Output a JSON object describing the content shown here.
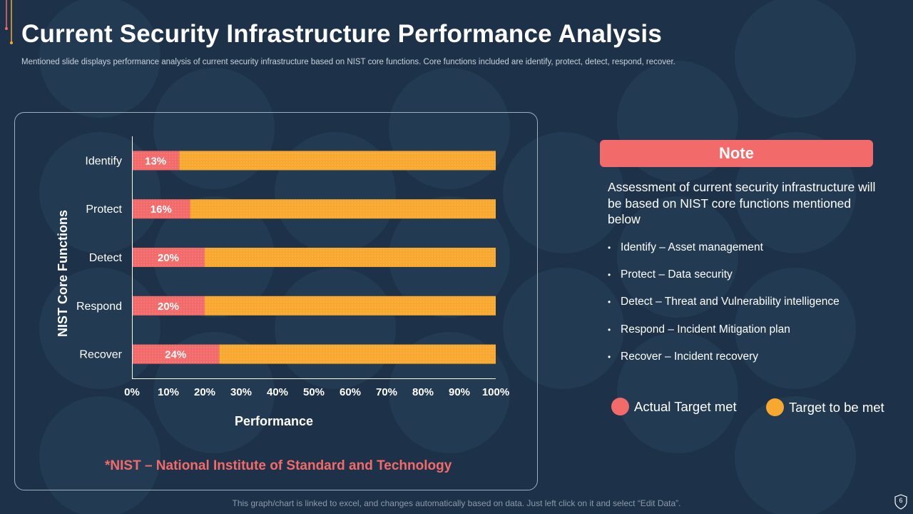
{
  "slide": {
    "title": "Current Security Infrastructure Performance Analysis",
    "subtitle": "Mentioned slide displays performance analysis of current security infrastructure based on NIST core functions. Core functions included are identify, protect, detect, respond, recover.",
    "footnote": "*NIST – National Institute of Standard and Technology",
    "bottom_note": "This graph/chart is linked to excel, and changes automatically based on data. Just left click on it and select “Edit Data”.",
    "page_number": "6"
  },
  "colors": {
    "background": "#1d3248",
    "actual": "#f26a6a",
    "target": "#f9a82f",
    "axis": "#ffffff"
  },
  "note": {
    "header": "Note",
    "text": "Assessment of current security infrastructure will be based on NIST core functions mentioned below",
    "bullet_symbol": "•",
    "items": [
      "Identify  – Asset management",
      "Protect – Data security",
      "Detect – Threat and Vulnerability  intelligence",
      "Respond – Incident  Mitigation plan",
      "Recover – Incident recovery"
    ]
  },
  "legend": {
    "actual": "Actual Target met",
    "target": "Target to be met"
  },
  "chart_data": {
    "type": "bar",
    "orientation": "horizontal",
    "stacked": true,
    "categories": [
      "Identify",
      "Protect",
      "Detect",
      "Respond",
      "Recover"
    ],
    "series": [
      {
        "name": "Actual Target met",
        "values": [
          13,
          16,
          20,
          20,
          24
        ],
        "color": "#f26a6a",
        "data_labels": [
          "13%",
          "16%",
          "20%",
          "20%",
          "24%"
        ]
      },
      {
        "name": "Target to be met",
        "values": [
          87,
          84,
          80,
          80,
          76
        ],
        "color": "#f9a82f"
      }
    ],
    "xlim": [
      0,
      100
    ],
    "xticks": [
      "0%",
      "10%",
      "20%",
      "30%",
      "40%",
      "50%",
      "60%",
      "70%",
      "80%",
      "90%",
      "100%"
    ],
    "xlabel": "Performance",
    "ylabel": "NIST Core Functions",
    "grid": false,
    "legend_position": "right"
  }
}
